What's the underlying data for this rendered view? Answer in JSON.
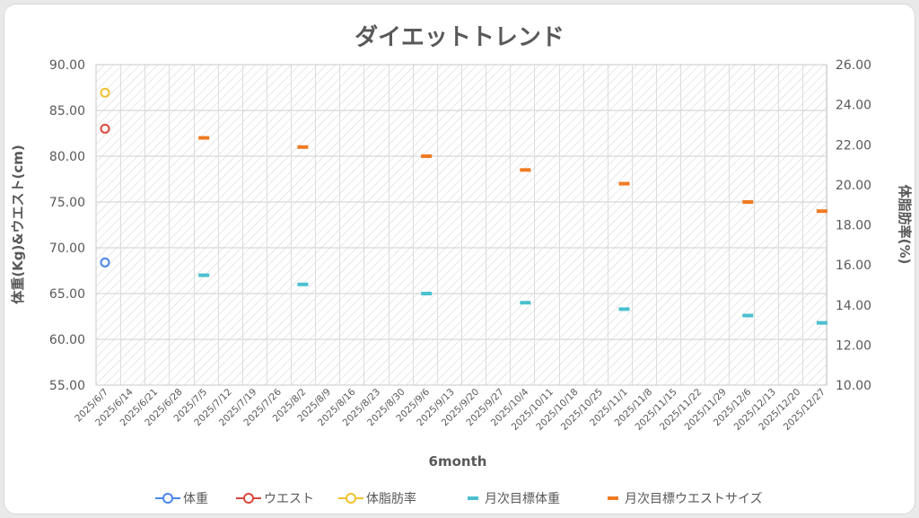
{
  "chart_data": {
    "type": "scatter",
    "title": "ダイエットトレンド",
    "xlabel": "6month",
    "ylabel_left": "体重(Kg)&ウエスト(cm)",
    "ylabel_right": "体脂肪率(%)",
    "y_left_lim": [
      55,
      90
    ],
    "y_left_ticks": [
      "55.00",
      "60.00",
      "65.00",
      "70.00",
      "75.00",
      "80.00",
      "85.00",
      "90.00"
    ],
    "y_right_lim": [
      10,
      26
    ],
    "y_right_ticks": [
      "10.00",
      "12.00",
      "14.00",
      "16.00",
      "18.00",
      "20.00",
      "22.00",
      "24.00",
      "26.00"
    ],
    "x_ticks": [
      "2025/6/7",
      "2025/6/14",
      "2025/6/21",
      "2025/6/28",
      "2025/7/5",
      "2025/7/12",
      "2025/7/19",
      "2025/7/26",
      "2025/8/2",
      "2025/8/9",
      "2025/8/16",
      "2025/8/23",
      "2025/8/30",
      "2025/9/6",
      "2025/9/13",
      "2025/9/20",
      "2025/9/27",
      "2025/10/4",
      "2025/10/11",
      "2025/10/18",
      "2025/10/25",
      "2025/11/1",
      "2025/11/8",
      "2025/11/15",
      "2025/11/22",
      "2025/11/29",
      "2025/12/6",
      "2025/12/13",
      "2025/12/20",
      "2025/12/27"
    ],
    "grid": true,
    "legend_position": "bottom",
    "series": [
      {
        "name": "体重",
        "axis": "left",
        "marker": "circle",
        "color": "#4a86e8",
        "points": [
          {
            "x": "2025/6/7",
            "y": 68.4
          }
        ]
      },
      {
        "name": "ウエスト",
        "axis": "left",
        "marker": "circle",
        "color": "#d9473c",
        "points": [
          {
            "x": "2025/6/7",
            "y": 83
          }
        ]
      },
      {
        "name": "体脂肪率",
        "axis": "right",
        "marker": "circle",
        "color": "#f2c12e",
        "points": [
          {
            "x": "2025/6/7",
            "y": 24.6
          }
        ]
      },
      {
        "name": "月次目標体重",
        "axis": "left",
        "marker": "dash",
        "color": "#4bc0cf",
        "points": [
          {
            "x": "2025/7/5",
            "y": 67
          },
          {
            "x": "2025/8/2",
            "y": 66
          },
          {
            "x": "2025/9/6",
            "y": 65
          },
          {
            "x": "2025/10/4",
            "y": 64
          },
          {
            "x": "2025/11/1",
            "y": 63.3
          },
          {
            "x": "2025/12/6",
            "y": 62.6
          },
          {
            "x": "2025/12/27",
            "y": 61.8
          }
        ]
      },
      {
        "name": "月次目標ウエストサイズ",
        "axis": "left",
        "marker": "dash",
        "color": "#f07a22",
        "points": [
          {
            "x": "2025/7/5",
            "y": 82
          },
          {
            "x": "2025/8/2",
            "y": 81
          },
          {
            "x": "2025/9/6",
            "y": 80
          },
          {
            "x": "2025/10/4",
            "y": 78.5
          },
          {
            "x": "2025/11/1",
            "y": 77
          },
          {
            "x": "2025/12/6",
            "y": 75
          },
          {
            "x": "2025/12/27",
            "y": 74
          }
        ]
      }
    ]
  }
}
